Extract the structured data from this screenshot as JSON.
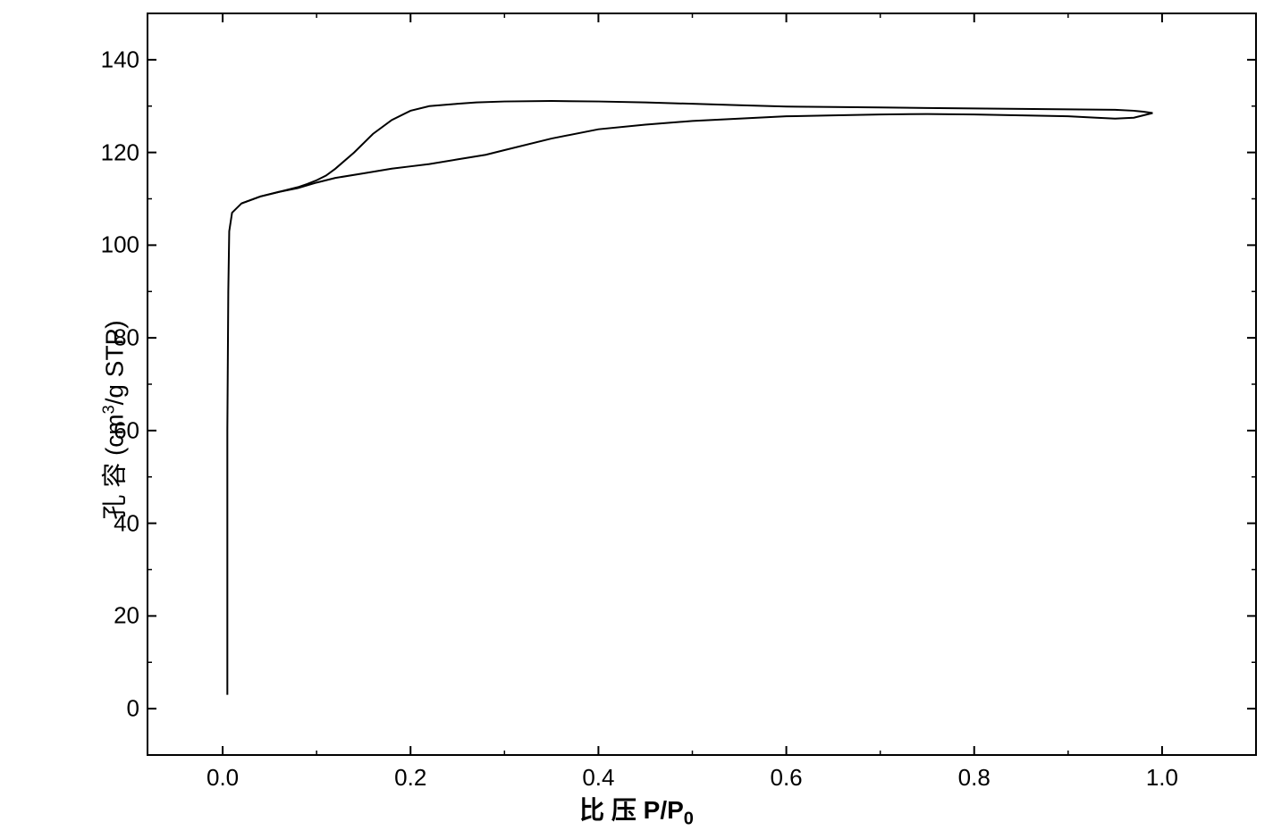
{
  "chart": {
    "type": "line",
    "xlabel": "比 压   P/P",
    "xlabel_sub": "0",
    "ylabel_prefix": "孔 容 (cm",
    "ylabel_sup": "3",
    "ylabel_suffix": "/g STP)",
    "xlim": [
      -0.08,
      1.1
    ],
    "ylim": [
      -10,
      150
    ],
    "xticks": [
      0.0,
      0.2,
      0.4,
      0.6,
      0.8,
      1.0
    ],
    "xtick_labels": [
      "0.0",
      "0.2",
      "0.4",
      "0.6",
      "0.8",
      "1.0"
    ],
    "yticks": [
      0,
      20,
      40,
      60,
      80,
      100,
      120,
      140
    ],
    "ytick_labels": [
      "0",
      "20",
      "40",
      "60",
      "80",
      "100",
      "120",
      "140"
    ],
    "background_color": "#ffffff",
    "axis_color": "#000000",
    "line_color": "#000000",
    "line_width": 2,
    "tick_length_major": 10,
    "tick_length_minor": 5,
    "label_fontsize": 28,
    "tick_fontsize": 26,
    "adsorption_curve": [
      [
        0.005,
        3
      ],
      [
        0.005,
        60
      ],
      [
        0.006,
        90
      ],
      [
        0.007,
        103
      ],
      [
        0.01,
        107
      ],
      [
        0.02,
        109
      ],
      [
        0.04,
        110.5
      ],
      [
        0.06,
        111.5
      ],
      [
        0.08,
        112.3
      ],
      [
        0.1,
        113.5
      ],
      [
        0.12,
        114.5
      ],
      [
        0.15,
        115.5
      ],
      [
        0.18,
        116.5
      ],
      [
        0.2,
        117
      ],
      [
        0.22,
        117.5
      ],
      [
        0.25,
        118.5
      ],
      [
        0.28,
        119.5
      ],
      [
        0.3,
        120.5
      ],
      [
        0.35,
        123
      ],
      [
        0.4,
        125
      ],
      [
        0.45,
        126
      ],
      [
        0.5,
        126.8
      ],
      [
        0.55,
        127.3
      ],
      [
        0.6,
        127.8
      ],
      [
        0.65,
        128
      ],
      [
        0.7,
        128.2
      ],
      [
        0.75,
        128.3
      ],
      [
        0.8,
        128.2
      ],
      [
        0.85,
        128
      ],
      [
        0.9,
        127.8
      ],
      [
        0.93,
        127.5
      ],
      [
        0.95,
        127.3
      ],
      [
        0.97,
        127.5
      ],
      [
        0.98,
        128
      ],
      [
        0.99,
        128.5
      ]
    ],
    "desorption_curve": [
      [
        0.99,
        128.5
      ],
      [
        0.98,
        128.8
      ],
      [
        0.97,
        129
      ],
      [
        0.95,
        129.2
      ],
      [
        0.9,
        129.3
      ],
      [
        0.85,
        129.4
      ],
      [
        0.8,
        129.5
      ],
      [
        0.75,
        129.6
      ],
      [
        0.7,
        129.7
      ],
      [
        0.65,
        129.8
      ],
      [
        0.6,
        129.9
      ],
      [
        0.55,
        130.2
      ],
      [
        0.5,
        130.5
      ],
      [
        0.45,
        130.8
      ],
      [
        0.4,
        131
      ],
      [
        0.35,
        131.1
      ],
      [
        0.3,
        131
      ],
      [
        0.27,
        130.8
      ],
      [
        0.25,
        130.5
      ],
      [
        0.22,
        130
      ],
      [
        0.2,
        129
      ],
      [
        0.18,
        127
      ],
      [
        0.16,
        124
      ],
      [
        0.14,
        120
      ],
      [
        0.12,
        116.5
      ],
      [
        0.11,
        115
      ],
      [
        0.1,
        114
      ],
      [
        0.09,
        113.2
      ],
      [
        0.08,
        112.5
      ],
      [
        0.06,
        111.5
      ],
      [
        0.04,
        110.5
      ],
      [
        0.02,
        109
      ]
    ]
  }
}
